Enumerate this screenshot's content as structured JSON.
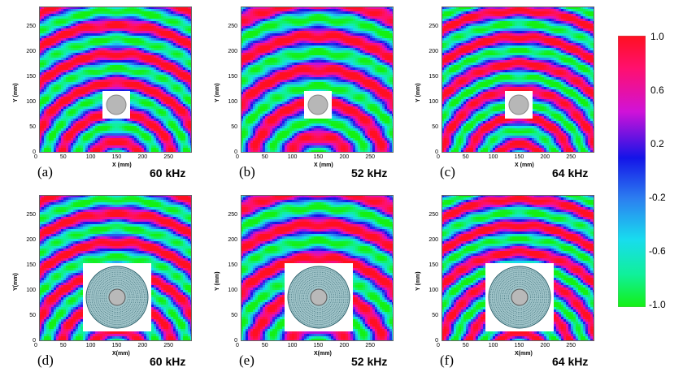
{
  "axis": {
    "y_ticks": [
      "0",
      "50",
      "100",
      "150",
      "200",
      "250"
    ],
    "x_ticks": [
      "0",
      "50",
      "100",
      "150",
      "200",
      "250"
    ],
    "y_label": "Y (mm)",
    "x_label": "X (mm)",
    "y_label_alt": "Y(mm)",
    "x_label_alt": "X(mm)"
  },
  "panels": [
    {
      "label": "(a)",
      "freq": "60 kHz",
      "kind": "bare"
    },
    {
      "label": "(b)",
      "freq": "52 kHz",
      "kind": "bare"
    },
    {
      "label": "(c)",
      "freq": "64 kHz",
      "kind": "bare"
    },
    {
      "label": "(d)",
      "freq": "60 kHz",
      "kind": "cloak"
    },
    {
      "label": "(e)",
      "freq": "52 kHz",
      "kind": "cloak"
    },
    {
      "label": "(f)",
      "freq": "64 kHz",
      "kind": "cloak"
    }
  ],
  "colorbar": {
    "ticks": [
      "1.0",
      "0.6",
      "0.2",
      "-0.2",
      "-0.6",
      "-1.0"
    ],
    "colors": [
      "#ff0a1e",
      "#e0129a",
      "#1a1ae6",
      "#2e8cf0",
      "#1ee3e0",
      "#1cf55a"
    ]
  }
}
